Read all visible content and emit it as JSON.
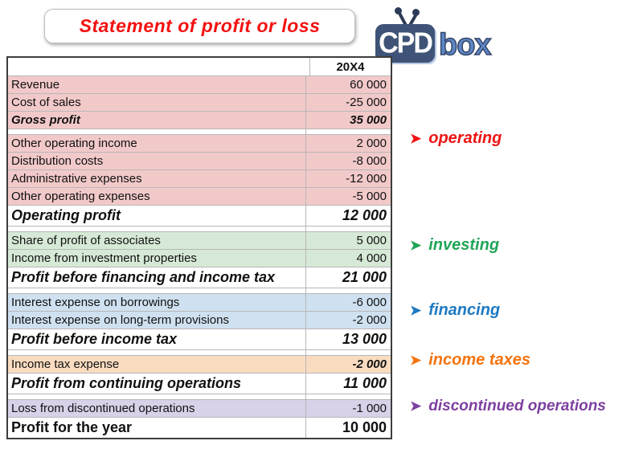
{
  "title": "Statement of profit or loss",
  "logo": {
    "cpd": "CPD",
    "box": "box"
  },
  "table": {
    "rows": [
      {
        "kind": "header",
        "label": "",
        "value": "20X4"
      },
      {
        "kind": "item",
        "bg": "red",
        "label": "Revenue",
        "value": "60 000"
      },
      {
        "kind": "item",
        "bg": "red",
        "label": "Cost of sales",
        "value": "-25 000"
      },
      {
        "kind": "item",
        "bg": "red",
        "em": true,
        "label": "Gross profit",
        "value": "35 000"
      },
      {
        "kind": "gap",
        "label": "",
        "value": ""
      },
      {
        "kind": "item",
        "bg": "red",
        "label": "Other operating income",
        "value": "2 000"
      },
      {
        "kind": "item",
        "bg": "red",
        "label": "Distribution costs",
        "value": "-8 000"
      },
      {
        "kind": "item",
        "bg": "red",
        "label": "Administrative expenses",
        "value": "-12 000"
      },
      {
        "kind": "item",
        "bg": "red",
        "label": "Other operating expenses",
        "value": "-5 000"
      },
      {
        "kind": "total",
        "label": "Operating profit",
        "value": "12 000"
      },
      {
        "kind": "gap",
        "label": "",
        "value": ""
      },
      {
        "kind": "item",
        "bg": "green",
        "label": "Share of profit of associates",
        "value": "5 000"
      },
      {
        "kind": "item",
        "bg": "green",
        "label": "Income from investment properties",
        "value": "4 000"
      },
      {
        "kind": "total",
        "label": "Profit before financing and income tax",
        "value": "21 000"
      },
      {
        "kind": "gap",
        "label": "",
        "value": ""
      },
      {
        "kind": "item",
        "bg": "blue",
        "label": "Interest expense on borrowings",
        "value": "-6 000"
      },
      {
        "kind": "item",
        "bg": "blue",
        "label": "Interest expense on long-term provisions",
        "value": "-2 000"
      },
      {
        "kind": "total",
        "label": "Profit before income tax",
        "value": "13 000"
      },
      {
        "kind": "gap",
        "label": "",
        "value": ""
      },
      {
        "kind": "item",
        "bg": "orange",
        "emv": true,
        "label": "Income tax expense",
        "value": "-2 000"
      },
      {
        "kind": "total",
        "label": "Profit from continuing operations",
        "value": "11 000"
      },
      {
        "kind": "gap",
        "label": "",
        "value": ""
      },
      {
        "kind": "item",
        "bg": "purple",
        "label": "Loss from discontinued operations",
        "value": "-1 000"
      },
      {
        "kind": "final",
        "label": "Profit for the year",
        "value": "10 000"
      }
    ]
  },
  "annotations": {
    "arrow_glyph": "➤",
    "items": [
      {
        "label": "operating",
        "color": "#ee1414"
      },
      {
        "label": "investing",
        "color": "#21a558"
      },
      {
        "label": "financing",
        "color": "#1d79c2"
      },
      {
        "label": "income taxes",
        "color": "#f4730d"
      },
      {
        "label": "discontinued operations",
        "color": "#7d40a0"
      }
    ]
  },
  "colors": {
    "title_text": "#f31111",
    "row_red": "#f2c9c9",
    "row_green": "#d6e9d6",
    "row_blue": "#cfe1f0",
    "row_orange": "#f9dcc0",
    "row_purple": "#d8d1e8",
    "logo_tv": "#3e5377",
    "logo_box_text": "#5d86c5"
  }
}
